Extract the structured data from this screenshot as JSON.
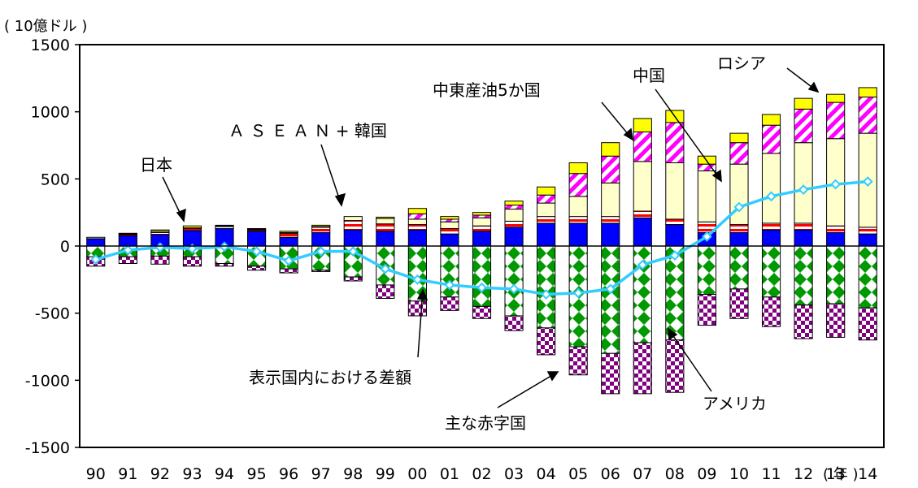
{
  "chart_data": {
    "type": "bar",
    "stacked": true,
    "unit_label": "( 10億ドル )",
    "x_unit_label": "( 年 )",
    "categories": [
      "90",
      "91",
      "92",
      "93",
      "94",
      "95",
      "96",
      "97",
      "98",
      "99",
      "00",
      "01",
      "02",
      "03",
      "04",
      "05",
      "06",
      "07",
      "08",
      "09",
      "10",
      "11",
      "12",
      "13",
      "14"
    ],
    "ylim": [
      -1500,
      1500
    ],
    "yticks": [
      1500,
      1000,
      500,
      0,
      -500,
      -1000,
      -1500
    ],
    "ytick_labels": [
      "1500",
      "1000",
      "500",
      "0",
      "-500",
      "-1000",
      "-1500"
    ],
    "grid": false,
    "positive_series": [
      {
        "key": "japan",
        "color": "#0000ff",
        "pattern": "solid",
        "values": [
          55,
          75,
          85,
          115,
          130,
          110,
          65,
          100,
          120,
          110,
          120,
          90,
          110,
          140,
          170,
          170,
          170,
          210,
          160,
          100,
          100,
          120,
          120,
          100,
          90
        ]
      },
      {
        "key": "asean_korea",
        "color": "#ff0000",
        "pattern": "horizontal-stripes",
        "values": [
          10,
          10,
          15,
          15,
          15,
          10,
          30,
          40,
          70,
          55,
          40,
          40,
          40,
          45,
          50,
          50,
          50,
          50,
          40,
          80,
          60,
          50,
          50,
          50,
          50
        ]
      },
      {
        "key": "china",
        "color": "#ffffcc",
        "pattern": "solid",
        "values": [
          0,
          5,
          10,
          5,
          5,
          5,
          5,
          5,
          30,
          40,
          40,
          50,
          60,
          90,
          100,
          150,
          250,
          370,
          420,
          380,
          450,
          520,
          600,
          650,
          700
        ]
      },
      {
        "key": "mideast5",
        "color": "#ff00ff",
        "pattern": "diagonal-stripes",
        "values": [
          0,
          0,
          0,
          0,
          0,
          0,
          0,
          0,
          0,
          0,
          40,
          20,
          20,
          30,
          60,
          170,
          200,
          220,
          300,
          50,
          160,
          210,
          250,
          270,
          270
        ]
      },
      {
        "key": "russia",
        "color": "#ffff00",
        "pattern": "solid",
        "values": [
          0,
          5,
          10,
          15,
          5,
          5,
          10,
          10,
          0,
          10,
          40,
          20,
          20,
          30,
          60,
          80,
          100,
          100,
          90,
          60,
          70,
          80,
          80,
          60,
          70
        ]
      }
    ],
    "negative_series": [
      {
        "key": "usa",
        "color": "#009900",
        "pattern": "diamond-checker",
        "values": [
          -80,
          -80,
          -75,
          -80,
          -130,
          -150,
          -170,
          -180,
          -230,
          -290,
          -410,
          -380,
          -450,
          -520,
          -610,
          -750,
          -800,
          -720,
          -700,
          -360,
          -320,
          -380,
          -440,
          -430,
          -460
        ]
      },
      {
        "key": "other_deficit",
        "color": "#800080",
        "pattern": "checker",
        "values": [
          -70,
          -50,
          -60,
          -70,
          -20,
          -30,
          -30,
          -10,
          -30,
          -100,
          -110,
          -100,
          -90,
          -110,
          -200,
          -210,
          -300,
          -380,
          -390,
          -230,
          -220,
          -220,
          -250,
          -250,
          -240
        ]
      }
    ],
    "line_series": {
      "key": "difference",
      "color": "#33ccff",
      "values": [
        -100,
        -30,
        -10,
        -20,
        -5,
        -40,
        -110,
        -40,
        -40,
        -170,
        -250,
        -290,
        -310,
        -320,
        -360,
        -350,
        -320,
        -140,
        -70,
        70,
        290,
        370,
        420,
        460,
        480
      ]
    },
    "annotations": [
      {
        "key": "japan",
        "text": "日本"
      },
      {
        "key": "asean_korea",
        "text": "Ａ Ｓ Ｅ Ａ Ｎ + 韓国"
      },
      {
        "key": "mideast5",
        "text": "中東産油5か国"
      },
      {
        "key": "china",
        "text": "中国"
      },
      {
        "key": "russia",
        "text": "ロシア"
      },
      {
        "key": "difference",
        "text": "表示国内における差額"
      },
      {
        "key": "other_deficit",
        "text": "主な赤字国"
      },
      {
        "key": "usa",
        "text": "アメリカ"
      }
    ]
  }
}
